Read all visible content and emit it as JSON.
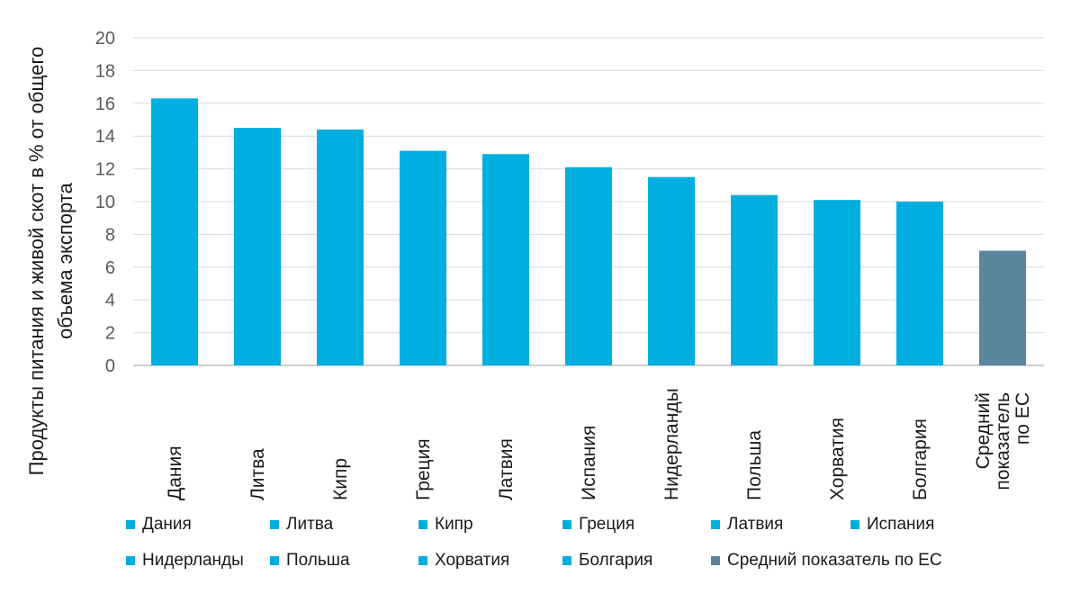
{
  "chart_data": {
    "type": "bar",
    "title": "",
    "xlabel": "",
    "ylabel_lines": [
      "Продукты питания и живой скот в % от общего",
      "объема экспорта"
    ],
    "ylim": [
      0,
      20
    ],
    "yticks": [
      0,
      2,
      4,
      6,
      8,
      10,
      12,
      14,
      16,
      18,
      20
    ],
    "grid": true,
    "categories": [
      [
        "Дания"
      ],
      [
        "Литва"
      ],
      [
        "Кипр"
      ],
      [
        "Греция"
      ],
      [
        "Латвия"
      ],
      [
        "Испания"
      ],
      [
        "Нидерланды"
      ],
      [
        "Польша"
      ],
      [
        "Хорватия"
      ],
      [
        "Болгария"
      ],
      [
        "Средний",
        "показатель",
        "по ЕС"
      ]
    ],
    "values": [
      16.3,
      14.5,
      14.4,
      13.1,
      12.9,
      12.1,
      11.5,
      10.4,
      10.1,
      10.0,
      7.0
    ],
    "bar_colors": [
      "#00aee0",
      "#00aee0",
      "#00aee0",
      "#00aee0",
      "#00aee0",
      "#00aee0",
      "#00aee0",
      "#00aee0",
      "#00aee0",
      "#00aee0",
      "#5b859d"
    ],
    "legend_position": "bottom",
    "legend": [
      {
        "label": "Дания",
        "color": "#00aee0"
      },
      {
        "label": "Литва",
        "color": "#00aee0"
      },
      {
        "label": "Кипр",
        "color": "#00aee0"
      },
      {
        "label": "Греция",
        "color": "#00aee0"
      },
      {
        "label": "Латвия",
        "color": "#00aee0"
      },
      {
        "label": "Испания",
        "color": "#00aee0"
      },
      {
        "label": "Нидерланды",
        "color": "#00aee0"
      },
      {
        "label": "Польша",
        "color": "#00aee0"
      },
      {
        "label": "Хорватия",
        "color": "#00aee0"
      },
      {
        "label": "Болгария",
        "color": "#00aee0"
      },
      {
        "label": "Средний показатель по ЕС",
        "color": "#5b859d"
      }
    ]
  }
}
